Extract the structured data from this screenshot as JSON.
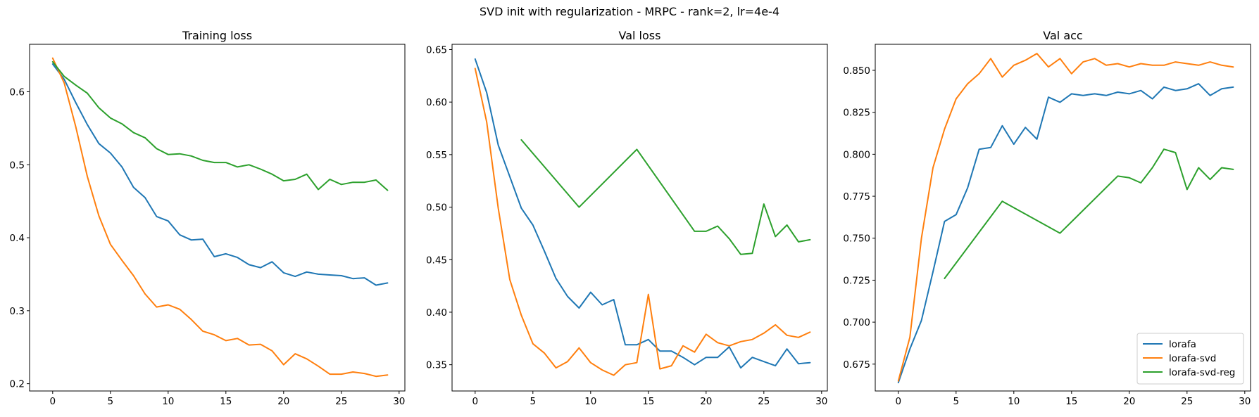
{
  "figure": {
    "suptitle": "SVD init with regularization - MRPC - rank=2, lr=4e-4"
  },
  "colors": {
    "lorafa": "#1f77b4",
    "lorafa-svd": "#ff7f0e",
    "lorafa-svd-reg": "#2ca02c"
  },
  "chart_data": [
    {
      "type": "line",
      "title": "Training loss",
      "xlabel": "",
      "ylabel": "",
      "xlim": [
        -2,
        30.5
      ],
      "ylim": [
        0.19,
        0.665
      ],
      "xticks": [
        0,
        5,
        10,
        15,
        20,
        25,
        30
      ],
      "yticks": [
        0.2,
        0.3,
        0.4,
        0.5,
        0.6
      ],
      "ytick_labels": [
        "0.2",
        "0.3",
        "0.4",
        "0.5",
        "0.6"
      ],
      "grid": false,
      "series": [
        {
          "name": "lorafa",
          "color": "#1f77b4",
          "x": [
            0,
            1,
            2,
            3,
            4,
            5,
            6,
            7,
            8,
            9,
            10,
            11,
            12,
            13,
            14,
            15,
            16,
            17,
            18,
            19,
            20,
            21,
            22,
            23,
            24,
            25,
            26,
            27,
            28,
            29
          ],
          "y": [
            0.638,
            0.617,
            0.585,
            0.555,
            0.529,
            0.516,
            0.497,
            0.469,
            0.455,
            0.429,
            0.423,
            0.404,
            0.397,
            0.398,
            0.374,
            0.378,
            0.373,
            0.363,
            0.359,
            0.367,
            0.352,
            0.347,
            0.353,
            0.35,
            0.349,
            0.348,
            0.344,
            0.345,
            0.335,
            0.338
          ]
        },
        {
          "name": "lorafa-svd",
          "color": "#ff7f0e",
          "x": [
            0,
            1,
            2,
            3,
            4,
            5,
            6,
            7,
            8,
            9,
            10,
            11,
            12,
            13,
            14,
            15,
            16,
            17,
            18,
            19,
            20,
            21,
            22,
            23,
            24,
            25,
            26,
            27,
            28,
            29
          ],
          "y": [
            0.646,
            0.612,
            0.552,
            0.484,
            0.43,
            0.391,
            0.369,
            0.348,
            0.323,
            0.305,
            0.308,
            0.302,
            0.288,
            0.272,
            0.267,
            0.259,
            0.262,
            0.253,
            0.254,
            0.245,
            0.226,
            0.241,
            0.234,
            0.224,
            0.213,
            0.213,
            0.216,
            0.214,
            0.21,
            0.212
          ]
        },
        {
          "name": "lorafa-svd-reg",
          "color": "#2ca02c",
          "x": [
            0,
            1,
            2,
            3,
            4,
            5,
            6,
            7,
            8,
            9,
            10,
            11,
            12,
            13,
            14,
            15,
            16,
            17,
            18,
            19,
            20,
            21,
            22,
            23,
            24,
            25,
            26,
            27,
            28,
            29
          ],
          "y": [
            0.641,
            0.621,
            0.609,
            0.598,
            0.578,
            0.564,
            0.556,
            0.544,
            0.537,
            0.522,
            0.514,
            0.515,
            0.512,
            0.506,
            0.503,
            0.503,
            0.497,
            0.5,
            0.494,
            0.487,
            0.478,
            0.48,
            0.487,
            0.466,
            0.48,
            0.473,
            0.476,
            0.476,
            0.479,
            0.465
          ]
        }
      ]
    },
    {
      "type": "line",
      "title": "Val loss",
      "xlabel": "",
      "ylabel": "",
      "xlim": [
        -2,
        30.5
      ],
      "ylim": [
        0.325,
        0.655
      ],
      "xticks": [
        0,
        5,
        10,
        15,
        20,
        25,
        30
      ],
      "yticks": [
        0.35,
        0.4,
        0.45,
        0.5,
        0.55,
        0.6,
        0.65
      ],
      "ytick_labels": [
        "0.35",
        "0.40",
        "0.45",
        "0.50",
        "0.55",
        "0.60",
        "0.65"
      ],
      "grid": false,
      "series": [
        {
          "name": "lorafa",
          "color": "#1f77b4",
          "x": [
            0,
            1,
            2,
            3,
            4,
            5,
            6,
            7,
            8,
            9,
            10,
            11,
            12,
            13,
            14,
            15,
            16,
            17,
            18,
            19,
            20,
            21,
            22,
            23,
            24,
            25,
            26,
            27,
            28,
            29
          ],
          "y": [
            0.641,
            0.609,
            0.559,
            0.529,
            0.499,
            0.483,
            0.458,
            0.432,
            0.415,
            0.404,
            0.419,
            0.407,
            0.412,
            0.369,
            0.369,
            0.374,
            0.363,
            0.363,
            0.357,
            0.35,
            0.357,
            0.357,
            0.367,
            0.347,
            0.357,
            0.353,
            0.349,
            0.365,
            0.351,
            0.352
          ]
        },
        {
          "name": "lorafa-svd",
          "color": "#ff7f0e",
          "x": [
            0,
            1,
            2,
            3,
            4,
            5,
            6,
            7,
            8,
            9,
            10,
            11,
            12,
            13,
            14,
            15,
            16,
            17,
            18,
            19,
            20,
            21,
            22,
            23,
            24,
            25,
            26,
            27,
            28,
            29
          ],
          "y": [
            0.632,
            0.581,
            0.499,
            0.431,
            0.397,
            0.37,
            0.361,
            0.347,
            0.353,
            0.366,
            0.352,
            0.345,
            0.34,
            0.35,
            0.352,
            0.417,
            0.346,
            0.349,
            0.368,
            0.362,
            0.379,
            0.371,
            0.368,
            0.372,
            0.374,
            0.38,
            0.388,
            0.378,
            0.376,
            0.381
          ]
        },
        {
          "name": "lorafa-svd-reg",
          "color": "#2ca02c",
          "x": [
            4,
            9,
            14,
            19,
            20,
            21,
            22,
            23,
            24,
            25,
            26,
            27,
            28,
            29
          ],
          "y": [
            0.564,
            0.5,
            0.555,
            0.477,
            0.477,
            0.482,
            0.47,
            0.455,
            0.456,
            0.503,
            0.472,
            0.483,
            0.467,
            0.469
          ]
        }
      ]
    },
    {
      "type": "line",
      "title": "Val acc",
      "xlabel": "",
      "ylabel": "",
      "xlim": [
        -2,
        30.5
      ],
      "ylim": [
        0.659,
        0.8655
      ],
      "xticks": [
        0,
        5,
        10,
        15,
        20,
        25,
        30
      ],
      "yticks": [
        0.675,
        0.7,
        0.725,
        0.75,
        0.775,
        0.8,
        0.825,
        0.85
      ],
      "ytick_labels": [
        "0.675",
        "0.700",
        "0.725",
        "0.750",
        "0.775",
        "0.800",
        "0.825",
        "0.850"
      ],
      "grid": false,
      "legend": {
        "placement": "lower right",
        "entries": [
          "lorafa",
          "lorafa-svd",
          "lorafa-svd-reg"
        ]
      },
      "series": [
        {
          "name": "lorafa",
          "color": "#1f77b4",
          "x": [
            0,
            1,
            2,
            3,
            4,
            5,
            6,
            7,
            8,
            9,
            10,
            11,
            12,
            13,
            14,
            15,
            16,
            17,
            18,
            19,
            20,
            21,
            22,
            23,
            24,
            25,
            26,
            27,
            28,
            29
          ],
          "y": [
            0.664,
            0.684,
            0.701,
            0.73,
            0.76,
            0.764,
            0.78,
            0.803,
            0.804,
            0.817,
            0.806,
            0.816,
            0.809,
            0.834,
            0.831,
            0.836,
            0.835,
            0.836,
            0.835,
            0.837,
            0.836,
            0.838,
            0.833,
            0.84,
            0.838,
            0.839,
            0.842,
            0.835,
            0.839,
            0.84
          ]
        },
        {
          "name": "lorafa-svd",
          "color": "#ff7f0e",
          "x": [
            0,
            1,
            2,
            3,
            4,
            5,
            6,
            7,
            8,
            9,
            10,
            11,
            12,
            13,
            14,
            15,
            16,
            17,
            18,
            19,
            20,
            21,
            22,
            23,
            24,
            25,
            26,
            27,
            28,
            29
          ],
          "y": [
            0.665,
            0.691,
            0.75,
            0.792,
            0.815,
            0.833,
            0.842,
            0.848,
            0.857,
            0.846,
            0.853,
            0.856,
            0.86,
            0.852,
            0.857,
            0.848,
            0.855,
            0.857,
            0.853,
            0.854,
            0.852,
            0.854,
            0.853,
            0.853,
            0.855,
            0.854,
            0.853,
            0.855,
            0.853,
            0.852
          ]
        },
        {
          "name": "lorafa-svd-reg",
          "color": "#2ca02c",
          "x": [
            4,
            9,
            14,
            19,
            20,
            21,
            22,
            23,
            24,
            25,
            26,
            27,
            28,
            29
          ],
          "y": [
            0.726,
            0.772,
            0.753,
            0.787,
            0.786,
            0.783,
            0.792,
            0.803,
            0.801,
            0.779,
            0.792,
            0.785,
            0.792,
            0.791
          ]
        }
      ]
    }
  ]
}
